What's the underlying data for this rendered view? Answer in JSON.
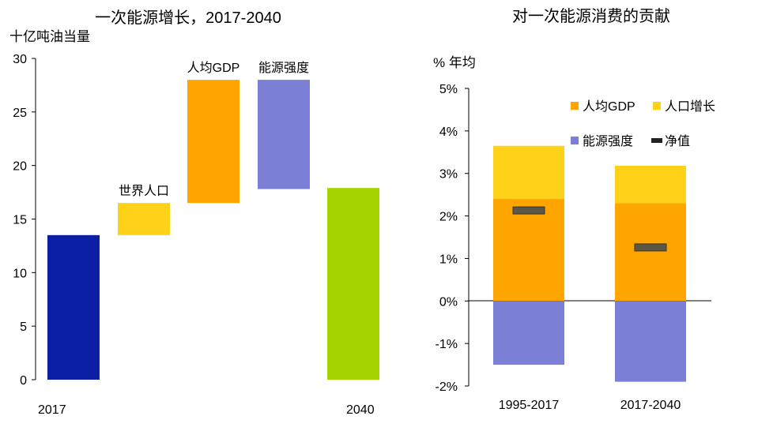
{
  "chart_data": [
    {
      "type": "bar",
      "subtype": "waterfall",
      "title": "一次能源增长，2017-2040",
      "ylabel": "十亿吨油当量",
      "ylim": [
        0,
        30
      ],
      "yticks": [
        "0",
        "5",
        "10",
        "15",
        "20",
        "25",
        "30"
      ],
      "grid": false,
      "categories": [
        "2017",
        "世界人口",
        "人均GDP",
        "能源强度",
        "2040"
      ],
      "bars": [
        {
          "label": "2017",
          "start": 0,
          "end": 13.5,
          "color": "#0a1fa3",
          "label_pos": "axis"
        },
        {
          "label": "世界人口",
          "start": 13.5,
          "end": 16.5,
          "color": "#ffd21a",
          "label_pos": "above"
        },
        {
          "label": "人均GDP",
          "start": 16.5,
          "end": 28.0,
          "color": "#ffa500",
          "label_pos": "above"
        },
        {
          "label": "能源强度",
          "start": 28.0,
          "end": 17.8,
          "color": "#7b7fd6",
          "label_pos": "above"
        },
        {
          "label": "2040",
          "start": 0,
          "end": 17.9,
          "color": "#a6d400",
          "label_pos": "axis"
        }
      ]
    },
    {
      "type": "bar",
      "subtype": "stacked",
      "title": "对一次能源消费的贡献",
      "ylabel": "% 年均",
      "ylim": [
        -2,
        5
      ],
      "yticks": [
        "-2%",
        "-1%",
        "0%",
        "1%",
        "2%",
        "3%",
        "4%",
        "5%"
      ],
      "grid": false,
      "legend_position": "top",
      "categories": [
        "1995-2017",
        "2017-2040"
      ],
      "series": [
        {
          "name": "人均GDP",
          "color": "#ffa500",
          "values": [
            2.4,
            2.3
          ]
        },
        {
          "name": "人口增长",
          "color": "#ffd21a",
          "values": [
            1.25,
            0.88
          ]
        },
        {
          "name": "能源强度",
          "color": "#7b7fd6",
          "values": [
            -1.5,
            -1.9
          ]
        }
      ],
      "net_series": {
        "name": "净值",
        "color": "#5c5646",
        "values": [
          2.13,
          1.26
        ]
      }
    }
  ]
}
